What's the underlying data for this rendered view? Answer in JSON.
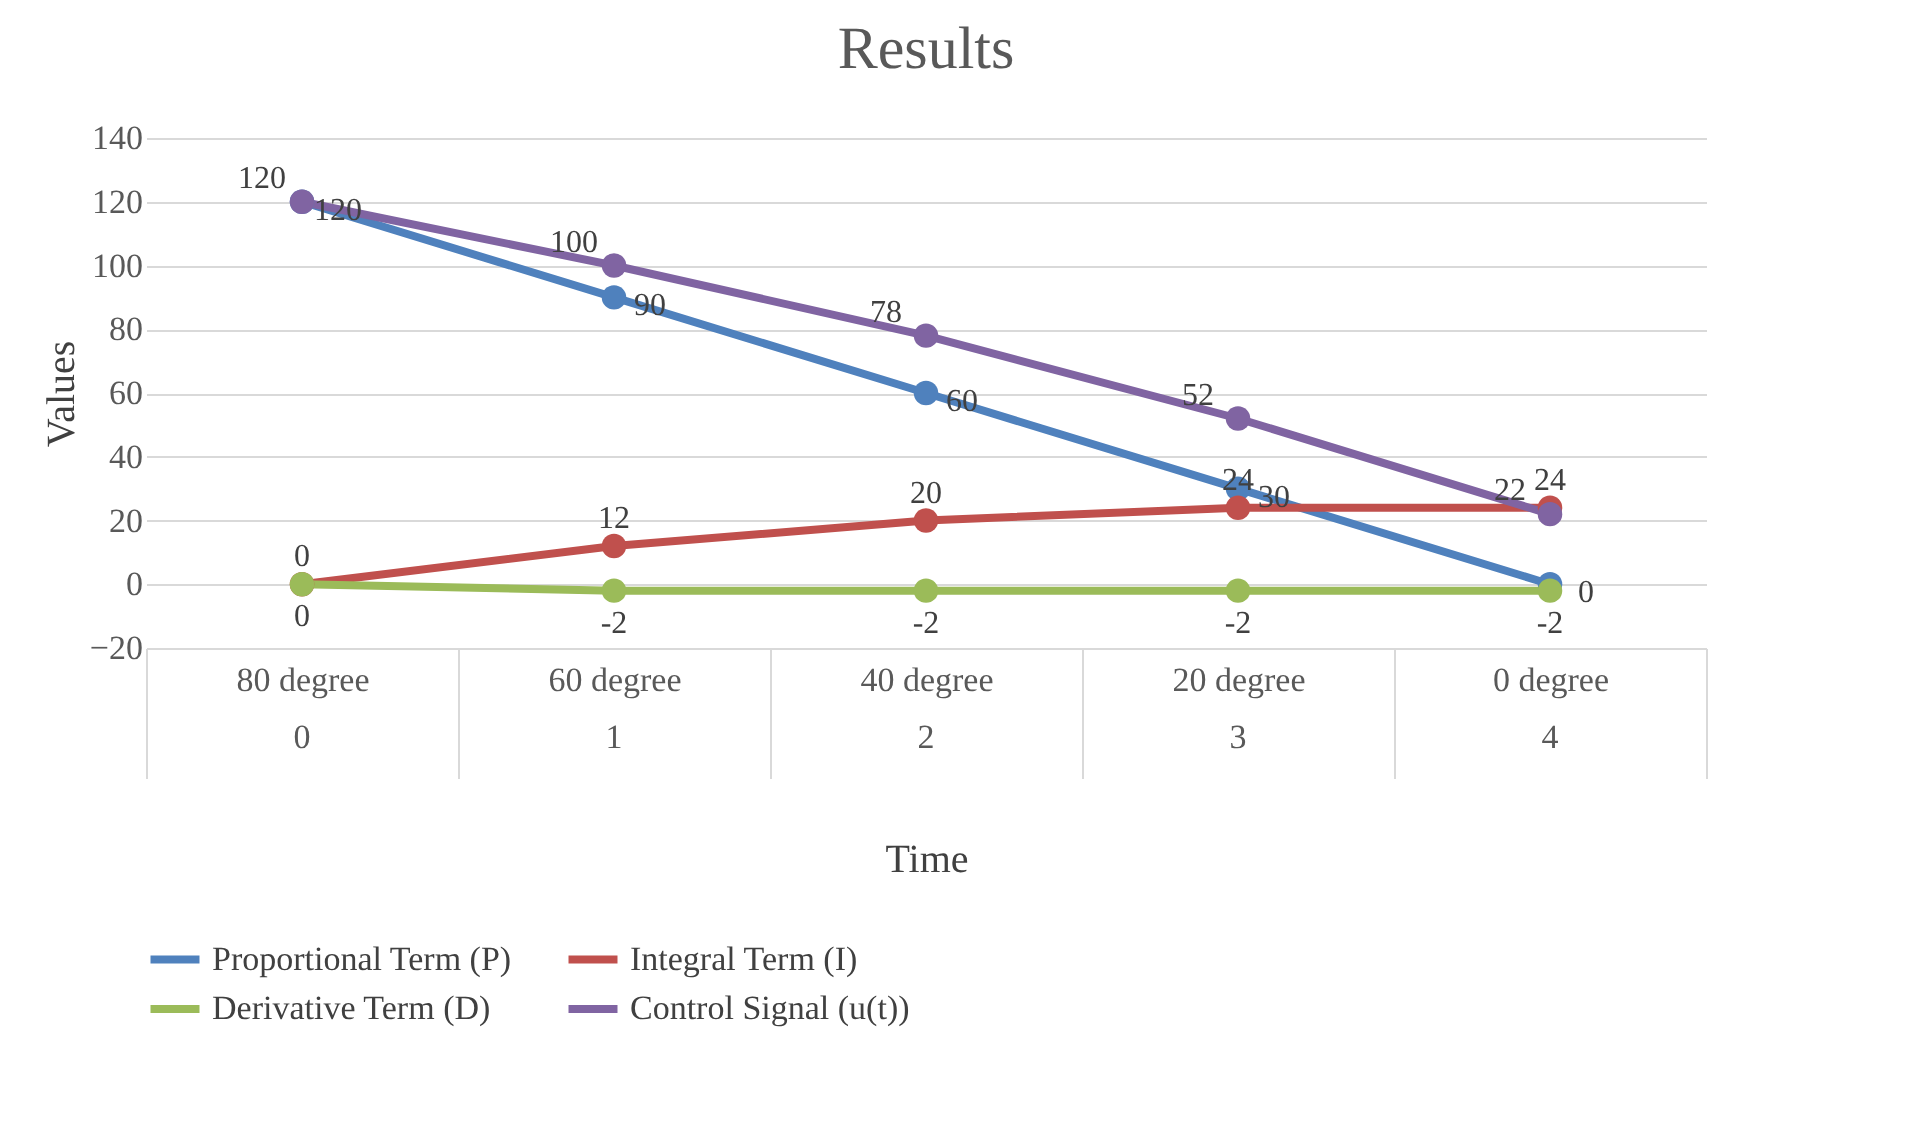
{
  "chart_data": {
    "type": "line",
    "title": "Results",
    "xlabel": "Time",
    "ylabel": "Values",
    "categories": [
      "80 degree",
      "60 degree",
      "40 degree",
      "20 degree",
      "0 degree"
    ],
    "series": [
      {
        "name": "Proportional Term (P)",
        "color": "#4f81bd",
        "values": [
          120,
          90,
          60,
          30,
          0
        ]
      },
      {
        "name": "Integral Term (I)",
        "color": "#c0504d",
        "values": [
          0,
          12,
          20,
          24,
          24
        ]
      },
      {
        "name": "Derivative Term (D)",
        "color": "#9bbb59",
        "values": [
          0,
          -2,
          -2,
          -2,
          -2
        ]
      },
      {
        "name": "Control Signal (u(t))",
        "color": "#8064a2",
        "values": [
          120,
          100,
          78,
          52,
          22
        ]
      }
    ],
    "annotations": [
      "0",
      "1",
      "2",
      "3",
      "4"
    ],
    "ylim": [
      -20,
      140
    ],
    "yticks": [
      -20,
      0,
      20,
      40,
      60,
      80,
      100,
      120,
      140
    ],
    "grid": "y",
    "legend": "bottom",
    "marker": "circle",
    "data_labels": true
  }
}
